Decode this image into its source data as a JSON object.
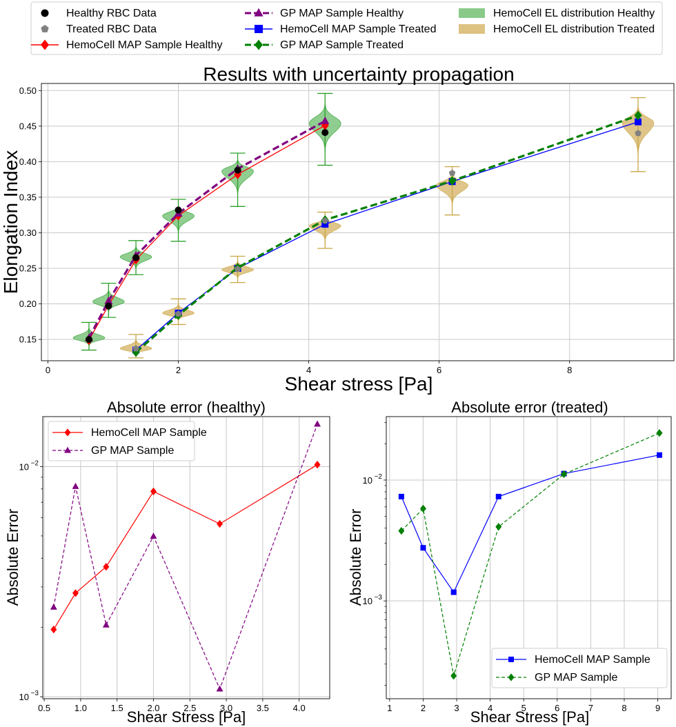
{
  "top_legend": {
    "entries": [
      {
        "label": "Healthy RBC Data",
        "kind": "marker",
        "marker": "circle",
        "color": "#000000"
      },
      {
        "label": "Treated RBC Data",
        "kind": "marker",
        "marker": "pentagon",
        "color": "#808080"
      },
      {
        "label": "HemoCell MAP Sample Healthy",
        "kind": "line",
        "marker": "diamond",
        "color": "#ff0000",
        "dash": "solid"
      },
      {
        "label": "GP MAP Sample Healthy",
        "kind": "line",
        "marker": "triangle",
        "color": "#800080",
        "dash": "dashed"
      },
      {
        "label": "HemoCell MAP Sample Treated",
        "kind": "line",
        "marker": "square",
        "color": "#0000ff",
        "dash": "solid"
      },
      {
        "label": "GP MAP Sample Treated",
        "kind": "line",
        "marker": "diamond",
        "color": "#008000",
        "dash": "dashed"
      },
      {
        "label": "HemoCell EL distribution Healthy",
        "kind": "patch",
        "color": "#7cc47c"
      },
      {
        "label": "HemoCell EL distribution Treated",
        "kind": "patch",
        "color": "#d9bb74"
      }
    ]
  },
  "chart_data": [
    {
      "type": "line",
      "title": "Results with uncertainty propagation",
      "xlabel": "Shear stress [Pa]",
      "ylabel": "Elongation Index",
      "xlim": [
        -0.1,
        9.6
      ],
      "ylim": [
        0.12,
        0.51
      ],
      "xticks": [
        0,
        2,
        4,
        6,
        8
      ],
      "yticks": [
        0.15,
        0.2,
        0.25,
        0.3,
        0.35,
        0.4,
        0.45,
        0.5
      ],
      "ytick_labels": [
        "0.15",
        "0.20",
        "0.25",
        "0.30",
        "0.35",
        "0.40",
        "0.45",
        "0.50"
      ],
      "grid": true,
      "healthy": {
        "x": [
          0.63,
          0.93,
          1.35,
          2.0,
          2.91,
          4.25
        ],
        "data": [
          0.15,
          0.197,
          0.265,
          0.332,
          0.388,
          0.441
        ],
        "hemocell_map": [
          0.149,
          0.198,
          0.262,
          0.324,
          0.382,
          0.451
        ],
        "gp_map": [
          0.152,
          0.204,
          0.268,
          0.327,
          0.39,
          0.457
        ],
        "dist_min": [
          0.135,
          0.181,
          0.241,
          0.288,
          0.337,
          0.395
        ],
        "dist_max": [
          0.174,
          0.229,
          0.289,
          0.347,
          0.412,
          0.496
        ],
        "dist_center": [
          0.152,
          0.203,
          0.266,
          0.324,
          0.387,
          0.454
        ],
        "color": "#7cc47c",
        "edge": "#2ca02c"
      },
      "treated": {
        "x": [
          1.35,
          2.0,
          2.91,
          4.25,
          6.2,
          9.05
        ],
        "data": [
          0.137,
          0.186,
          0.249,
          0.317,
          0.384,
          0.44
        ],
        "hemocell_map": [
          0.135,
          0.187,
          0.25,
          0.312,
          0.372,
          0.456
        ],
        "gp_map": [
          0.132,
          0.184,
          0.251,
          0.318,
          0.373,
          0.465
        ],
        "dist_min": [
          0.124,
          0.171,
          0.23,
          0.278,
          0.325,
          0.386
        ],
        "dist_max": [
          0.157,
          0.207,
          0.267,
          0.329,
          0.393,
          0.49
        ],
        "dist_center": [
          0.137,
          0.187,
          0.248,
          0.31,
          0.367,
          0.455
        ],
        "color": "#d9bb74",
        "edge": "#c9a645"
      }
    },
    {
      "type": "line",
      "title": "Absolute error (healthy)",
      "xlabel": "Shear Stress [Pa]",
      "ylabel": "Absolute Error",
      "yscale": "log",
      "xlim": [
        0.48,
        4.42
      ],
      "ylim": [
        0.00098,
        0.0165
      ],
      "xticks": [
        0.5,
        1.0,
        1.5,
        2.0,
        2.5,
        3.0,
        3.5,
        4.0
      ],
      "xtick_labels": [
        "0.5",
        "1.0",
        "1.5",
        "2.0",
        "2.5",
        "3.0",
        "3.5",
        "4.0"
      ],
      "ytick_labels": [
        "10",
        "10"
      ],
      "ytick_exponents": [
        "−2",
        "−3"
      ],
      "legend_location": "upper-left",
      "legend_labels": [
        "HemoCell MAP Sample",
        "GP MAP Sample"
      ],
      "series": [
        {
          "name": "HemoCell MAP Sample",
          "x": [
            0.63,
            0.93,
            1.35,
            2.0,
            2.91,
            4.25
          ],
          "values": [
            0.00196,
            0.00282,
            0.00367,
            0.0078,
            0.00564,
            0.0102
          ],
          "color": "#ff0000",
          "dash": "solid",
          "marker": "diamond"
        },
        {
          "name": "GP MAP Sample",
          "x": [
            0.63,
            0.93,
            1.35,
            2.0,
            2.91,
            4.25
          ],
          "values": [
            0.00245,
            0.0082,
            0.00205,
            0.00498,
            0.00108,
            0.0153
          ],
          "color": "#800080",
          "dash": "dashed",
          "marker": "triangle"
        }
      ]
    },
    {
      "type": "line",
      "title": "Absolute error (treated)",
      "xlabel": "Shear Stress [Pa]",
      "ylabel": "Absolute Error",
      "yscale": "log",
      "xlim": [
        0.9,
        9.4
      ],
      "ylim": [
        0.000155,
        0.0335
      ],
      "xticks": [
        1,
        2,
        3,
        4,
        5,
        6,
        7,
        8,
        9
      ],
      "xtick_labels": [
        "1",
        "2",
        "3",
        "4",
        "5",
        "6",
        "7",
        "8",
        "9"
      ],
      "ytick_labels": [
        "10",
        "10"
      ],
      "ytick_exponents": [
        "−2",
        "−3"
      ],
      "legend_location": "lower-right",
      "legend_labels": [
        "HemoCell MAP Sample",
        "GP MAP Sample"
      ],
      "series": [
        {
          "name": "HemoCell MAP Sample",
          "x": [
            1.35,
            2.0,
            2.91,
            4.25,
            6.2,
            9.05
          ],
          "values": [
            0.0073,
            0.00275,
            0.00118,
            0.0073,
            0.0113,
            0.0161
          ],
          "color": "#0000ff",
          "dash": "solid",
          "marker": "square"
        },
        {
          "name": "GP MAP Sample",
          "x": [
            1.35,
            2.0,
            2.91,
            4.25,
            6.2,
            9.05
          ],
          "values": [
            0.0038,
            0.0058,
            0.00024,
            0.0041,
            0.0112,
            0.0245
          ],
          "color": "#008000",
          "dash": "dashed",
          "marker": "diamond"
        }
      ]
    }
  ]
}
